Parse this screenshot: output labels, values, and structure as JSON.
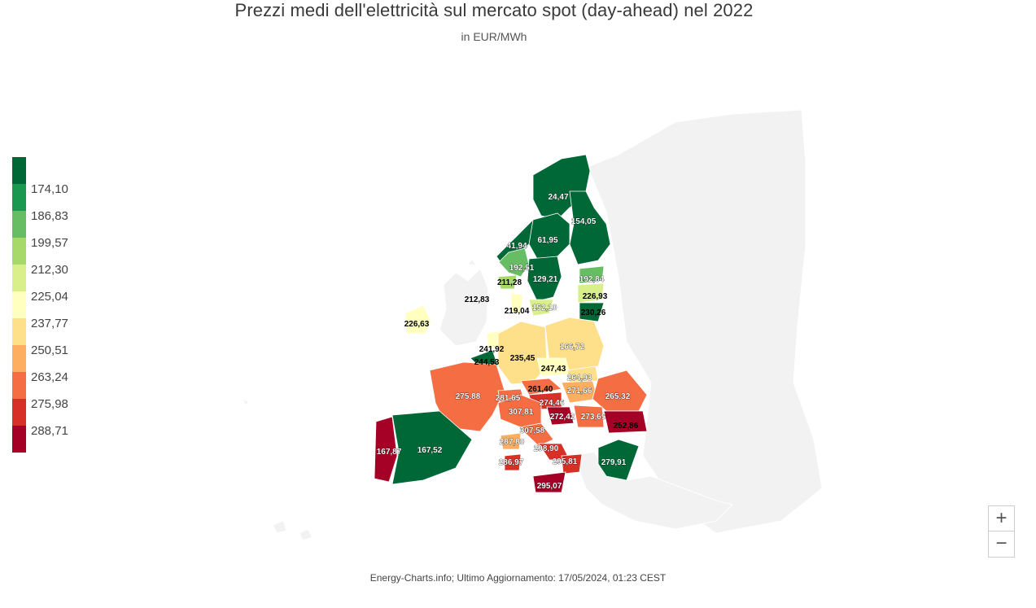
{
  "title": "Prezzi medi dell'elettricità sul mercato spot (day-ahead) nel 2022",
  "subtitle": "in EUR/MWh",
  "credits": "Energy-Charts.info; Ultimo Aggiornamento: 17/05/2024, 01:23 CEST",
  "legend": {
    "colors": [
      "#006837",
      "#1a9850",
      "#66bd63",
      "#a6d96a",
      "#d9ef8b",
      "#ffffbf",
      "#fee08b",
      "#fdae61",
      "#f46d43",
      "#d73027",
      "#a50026"
    ],
    "labels": [
      "174,10",
      "186,83",
      "199,57",
      "212,30",
      "225,04",
      "237,77",
      "250,51",
      "263,24",
      "275,98",
      "288,71"
    ]
  },
  "zoom": {
    "in_label": "+",
    "out_label": "−"
  },
  "colors": {
    "background_land": "#f2f2f2",
    "border": "#ffffff",
    "label_light": "#ffffff",
    "label_dark": "#000000"
  },
  "chart_data": {
    "type": "choropleth",
    "unit": "EUR/MWh",
    "regions": [
      {
        "value": "24,47"
      },
      {
        "value": "154,05"
      },
      {
        "value": "41,94"
      },
      {
        "value": "61,95"
      },
      {
        "value": "192,51"
      },
      {
        "value": "129,21"
      },
      {
        "value": "192,84"
      },
      {
        "value": "211,28"
      },
      {
        "value": "212,83"
      },
      {
        "value": "226,93"
      },
      {
        "value": "219,04"
      },
      {
        "value": "152,10"
      },
      {
        "value": "230,26"
      },
      {
        "value": "226,63"
      },
      {
        "value": "241,92"
      },
      {
        "value": "166,72"
      },
      {
        "value": "244,53"
      },
      {
        "value": "235,45"
      },
      {
        "value": "247,43"
      },
      {
        "value": "264,93"
      },
      {
        "value": "261,40"
      },
      {
        "value": "271,66"
      },
      {
        "value": "275,88"
      },
      {
        "value": "281,65"
      },
      {
        "value": "274,46"
      },
      {
        "value": "265,32"
      },
      {
        "value": "307,81"
      },
      {
        "value": "272,42"
      },
      {
        "value": "273,65"
      },
      {
        "value": "307,58"
      },
      {
        "value": "252,86"
      },
      {
        "value": "287,80"
      },
      {
        "value": "298,90"
      },
      {
        "value": "167,87"
      },
      {
        "value": "167,52"
      },
      {
        "value": "279,91"
      },
      {
        "value": "286,97"
      },
      {
        "value": "295,81"
      },
      {
        "value": "295,07"
      }
    ]
  }
}
